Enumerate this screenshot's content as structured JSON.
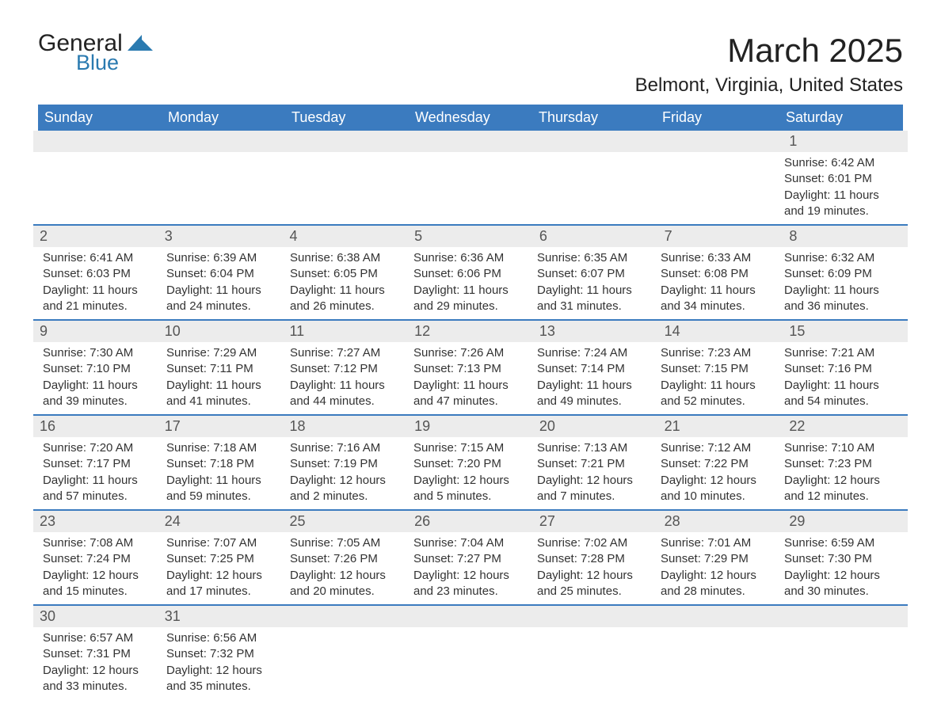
{
  "logo": {
    "text_main": "General",
    "text_sub": "Blue",
    "shape_color": "#2a7ab0"
  },
  "title": "March 2025",
  "location": "Belmont, Virginia, United States",
  "colors": {
    "header_bg": "#3b7bbf",
    "header_text": "#ffffff",
    "daynum_bg": "#ececec",
    "daynum_text": "#555555",
    "body_text": "#333333",
    "week_border": "#3b7bbf",
    "page_bg": "#ffffff"
  },
  "typography": {
    "title_fontsize": 42,
    "location_fontsize": 24,
    "header_fontsize": 18,
    "daynum_fontsize": 18,
    "body_fontsize": 15,
    "font_family": "Arial"
  },
  "layout": {
    "columns": 7,
    "start_day_index": 6
  },
  "days_of_week": [
    "Sunday",
    "Monday",
    "Tuesday",
    "Wednesday",
    "Thursday",
    "Friday",
    "Saturday"
  ],
  "weeks": [
    [
      null,
      null,
      null,
      null,
      null,
      null,
      {
        "n": "1",
        "sunrise": "6:42 AM",
        "sunset": "6:01 PM",
        "day_h": "11",
        "day_m": "19"
      }
    ],
    [
      {
        "n": "2",
        "sunrise": "6:41 AM",
        "sunset": "6:03 PM",
        "day_h": "11",
        "day_m": "21"
      },
      {
        "n": "3",
        "sunrise": "6:39 AM",
        "sunset": "6:04 PM",
        "day_h": "11",
        "day_m": "24"
      },
      {
        "n": "4",
        "sunrise": "6:38 AM",
        "sunset": "6:05 PM",
        "day_h": "11",
        "day_m": "26"
      },
      {
        "n": "5",
        "sunrise": "6:36 AM",
        "sunset": "6:06 PM",
        "day_h": "11",
        "day_m": "29"
      },
      {
        "n": "6",
        "sunrise": "6:35 AM",
        "sunset": "6:07 PM",
        "day_h": "11",
        "day_m": "31"
      },
      {
        "n": "7",
        "sunrise": "6:33 AM",
        "sunset": "6:08 PM",
        "day_h": "11",
        "day_m": "34"
      },
      {
        "n": "8",
        "sunrise": "6:32 AM",
        "sunset": "6:09 PM",
        "day_h": "11",
        "day_m": "36"
      }
    ],
    [
      {
        "n": "9",
        "sunrise": "7:30 AM",
        "sunset": "7:10 PM",
        "day_h": "11",
        "day_m": "39"
      },
      {
        "n": "10",
        "sunrise": "7:29 AM",
        "sunset": "7:11 PM",
        "day_h": "11",
        "day_m": "41"
      },
      {
        "n": "11",
        "sunrise": "7:27 AM",
        "sunset": "7:12 PM",
        "day_h": "11",
        "day_m": "44"
      },
      {
        "n": "12",
        "sunrise": "7:26 AM",
        "sunset": "7:13 PM",
        "day_h": "11",
        "day_m": "47"
      },
      {
        "n": "13",
        "sunrise": "7:24 AM",
        "sunset": "7:14 PM",
        "day_h": "11",
        "day_m": "49"
      },
      {
        "n": "14",
        "sunrise": "7:23 AM",
        "sunset": "7:15 PM",
        "day_h": "11",
        "day_m": "52"
      },
      {
        "n": "15",
        "sunrise": "7:21 AM",
        "sunset": "7:16 PM",
        "day_h": "11",
        "day_m": "54"
      }
    ],
    [
      {
        "n": "16",
        "sunrise": "7:20 AM",
        "sunset": "7:17 PM",
        "day_h": "11",
        "day_m": "57"
      },
      {
        "n": "17",
        "sunrise": "7:18 AM",
        "sunset": "7:18 PM",
        "day_h": "11",
        "day_m": "59"
      },
      {
        "n": "18",
        "sunrise": "7:16 AM",
        "sunset": "7:19 PM",
        "day_h": "12",
        "day_m": "2"
      },
      {
        "n": "19",
        "sunrise": "7:15 AM",
        "sunset": "7:20 PM",
        "day_h": "12",
        "day_m": "5"
      },
      {
        "n": "20",
        "sunrise": "7:13 AM",
        "sunset": "7:21 PM",
        "day_h": "12",
        "day_m": "7"
      },
      {
        "n": "21",
        "sunrise": "7:12 AM",
        "sunset": "7:22 PM",
        "day_h": "12",
        "day_m": "10"
      },
      {
        "n": "22",
        "sunrise": "7:10 AM",
        "sunset": "7:23 PM",
        "day_h": "12",
        "day_m": "12"
      }
    ],
    [
      {
        "n": "23",
        "sunrise": "7:08 AM",
        "sunset": "7:24 PM",
        "day_h": "12",
        "day_m": "15"
      },
      {
        "n": "24",
        "sunrise": "7:07 AM",
        "sunset": "7:25 PM",
        "day_h": "12",
        "day_m": "17"
      },
      {
        "n": "25",
        "sunrise": "7:05 AM",
        "sunset": "7:26 PM",
        "day_h": "12",
        "day_m": "20"
      },
      {
        "n": "26",
        "sunrise": "7:04 AM",
        "sunset": "7:27 PM",
        "day_h": "12",
        "day_m": "23"
      },
      {
        "n": "27",
        "sunrise": "7:02 AM",
        "sunset": "7:28 PM",
        "day_h": "12",
        "day_m": "25"
      },
      {
        "n": "28",
        "sunrise": "7:01 AM",
        "sunset": "7:29 PM",
        "day_h": "12",
        "day_m": "28"
      },
      {
        "n": "29",
        "sunrise": "6:59 AM",
        "sunset": "7:30 PM",
        "day_h": "12",
        "day_m": "30"
      }
    ],
    [
      {
        "n": "30",
        "sunrise": "6:57 AM",
        "sunset": "7:31 PM",
        "day_h": "12",
        "day_m": "33"
      },
      {
        "n": "31",
        "sunrise": "6:56 AM",
        "sunset": "7:32 PM",
        "day_h": "12",
        "day_m": "35"
      },
      null,
      null,
      null,
      null,
      null
    ]
  ],
  "labels": {
    "sunrise": "Sunrise:",
    "sunset": "Sunset:",
    "daylight": "Daylight:",
    "hours": "hours",
    "and": "and",
    "minutes": "minutes."
  }
}
